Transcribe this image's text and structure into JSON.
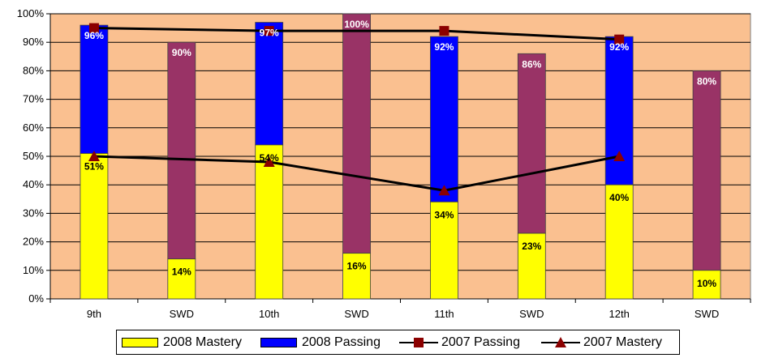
{
  "chart_data": {
    "type": "bar",
    "stacked": true,
    "categories": [
      "9th",
      "SWD",
      "10th",
      "SWD",
      "11th",
      "SWD",
      "12th",
      "SWD"
    ],
    "ylim": [
      0,
      100
    ],
    "yticks": [
      "0%",
      "10%",
      "20%",
      "30%",
      "40%",
      "50%",
      "60%",
      "70%",
      "80%",
      "90%",
      "100%"
    ],
    "grid": true,
    "legend_position": "bottom",
    "series": [
      {
        "name": "2008 Mastery",
        "kind": "bar",
        "color": "#ffff00",
        "values": [
          51,
          14,
          54,
          16,
          34,
          23,
          40,
          10
        ],
        "labels": [
          "51%",
          "14%",
          "54%",
          "16%",
          "34%",
          "23%",
          "40%",
          "10%"
        ]
      },
      {
        "name": "2008 Passing",
        "kind": "bar",
        "color": "#0000ff",
        "color_swd": "#993366",
        "totals": [
          96,
          90,
          97,
          100,
          92,
          86,
          92,
          80
        ],
        "labels": [
          "96%",
          "90%",
          "97%",
          "100%",
          "92%",
          "86%",
          "92%",
          "80%"
        ]
      },
      {
        "name": "2007 Passing",
        "kind": "line",
        "marker": "square",
        "color": "#8b0000",
        "points": [
          {
            "x": "9th",
            "y": 95
          },
          {
            "x": "10th",
            "y": 94
          },
          {
            "x": "11th",
            "y": 94
          },
          {
            "x": "12th",
            "y": 91
          }
        ]
      },
      {
        "name": "2007 Mastery",
        "kind": "line",
        "marker": "triangle",
        "color": "#8b0000",
        "points": [
          {
            "x": "9th",
            "y": 50
          },
          {
            "x": "10th",
            "y": 48
          },
          {
            "x": "11th",
            "y": 38
          },
          {
            "x": "12th",
            "y": 50
          }
        ]
      }
    ],
    "colors": {
      "plot_background": "#fac090",
      "gridline": "#000000",
      "line": "#000000"
    }
  },
  "legend": {
    "items": [
      "2008 Mastery",
      "2008 Passing",
      "2007 Passing",
      "2007 Mastery"
    ]
  }
}
